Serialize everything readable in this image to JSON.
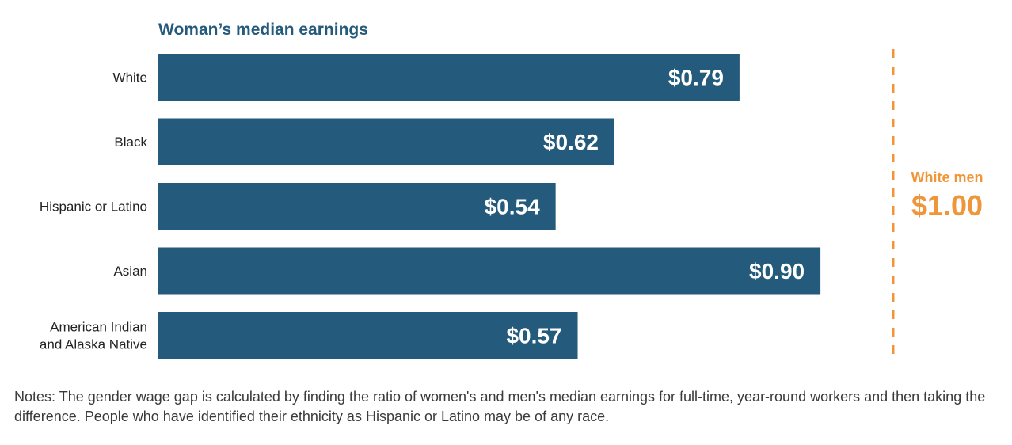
{
  "chart_data": {
    "type": "bar",
    "orientation": "horizontal",
    "title": "Woman’s median earnings",
    "categories": [
      [
        "White"
      ],
      [
        "Black"
      ],
      [
        "Hispanic or Latino"
      ],
      [
        "Asian"
      ],
      [
        "American Indian",
        "and Alaska Native"
      ]
    ],
    "values": [
      0.79,
      0.62,
      0.54,
      0.9,
      0.57
    ],
    "data_labels": [
      "$0.79",
      "$0.62",
      "$0.54",
      "$0.90",
      "$0.57"
    ],
    "xlim": [
      0,
      1.0
    ],
    "reference": {
      "value": 1.0,
      "label": "White men",
      "value_label": "$1.00"
    },
    "colors": {
      "bar": "#245a7b",
      "reference": "#f0963a"
    }
  },
  "notes": "Notes: The gender wage gap is calculated by finding the ratio of women's and men's median earnings for full-time, year-round workers and then taking the difference. People who have identified their ethnicity as Hispanic or Latino may be of any race."
}
